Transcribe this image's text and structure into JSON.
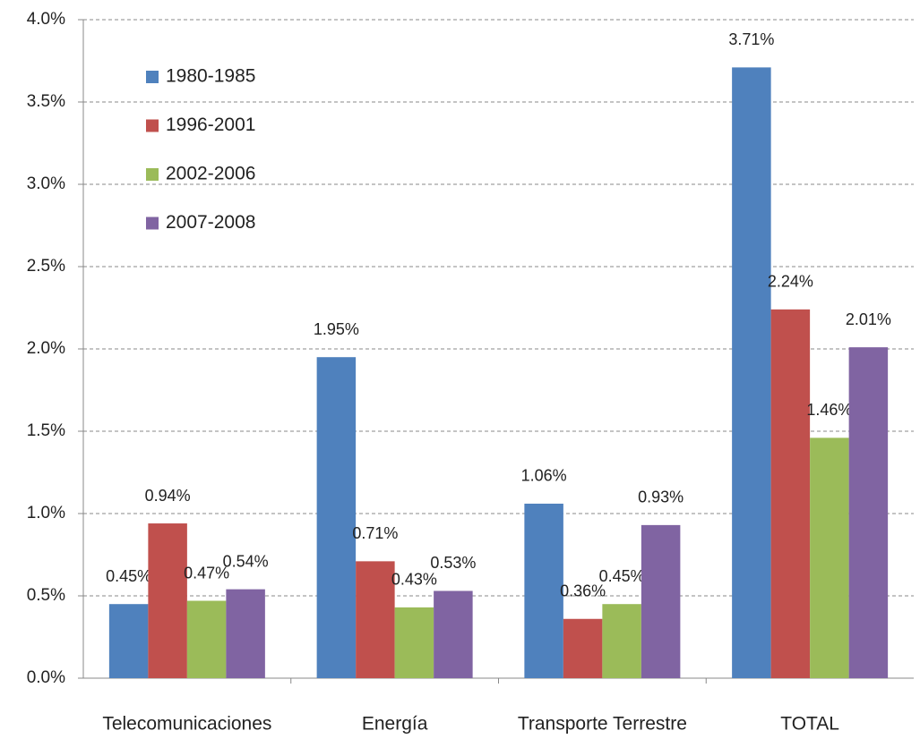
{
  "chart_data": {
    "type": "bar",
    "categories": [
      "Telecomunicaciones",
      "Energía",
      "Transporte Terrestre",
      "TOTAL"
    ],
    "series": [
      {
        "name": "1980-1985",
        "color": "#4f81bd",
        "values": [
          0.45,
          1.95,
          1.06,
          3.71
        ],
        "value_labels": [
          "0.45%",
          "1.95%",
          "1.06%",
          "3.71%"
        ]
      },
      {
        "name": "1996-2001",
        "color": "#c0504d",
        "values": [
          0.94,
          0.71,
          0.36,
          2.24
        ],
        "value_labels": [
          "0.94%",
          "0.71%",
          "0.36%",
          "2.24%"
        ]
      },
      {
        "name": "2002-2006",
        "color": "#9bbb59",
        "values": [
          0.47,
          0.43,
          0.45,
          1.46
        ],
        "value_labels": [
          "0.47%",
          "0.43%",
          "0.45%",
          "1.46%"
        ]
      },
      {
        "name": "2007-2008",
        "color": "#8064a2",
        "values": [
          0.54,
          0.53,
          0.93,
          2.01
        ],
        "value_labels": [
          "0.54%",
          "0.53%",
          "0.93%",
          "2.01%"
        ]
      }
    ],
    "ylim": [
      0,
      4
    ],
    "yticks": [
      {
        "value": 0,
        "label": "0.0%"
      },
      {
        "value": 0.5,
        "label": "0.5%"
      },
      {
        "value": 1,
        "label": "1.0%"
      },
      {
        "value": 1.5,
        "label": "1.5%"
      },
      {
        "value": 2,
        "label": "2.0%"
      },
      {
        "value": 2.5,
        "label": "2.5%"
      },
      {
        "value": 3,
        "label": "3.0%"
      },
      {
        "value": 3.5,
        "label": "3.5%"
      },
      {
        "value": 4,
        "label": "4.0%"
      }
    ],
    "grid": true,
    "legend": "upper-left"
  }
}
